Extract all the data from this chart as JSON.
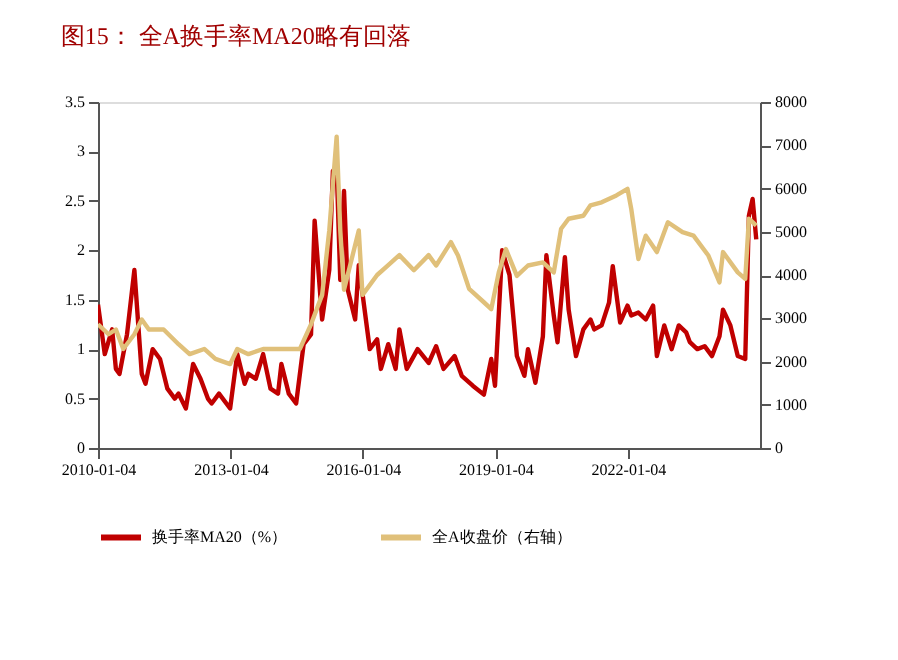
{
  "chart_data": {
    "type": "line",
    "title": "图15： 全A换手率MA20略有回落",
    "xlim": [
      "2010-01-04",
      "2025-01-01"
    ],
    "xticks": [
      "2010-01-04",
      "2013-01-04",
      "2016-01-04",
      "2019-01-04",
      "2022-01-04"
    ],
    "ylim": [
      0,
      3.5
    ],
    "yticks": [
      0,
      0.5,
      1,
      1.5,
      2,
      2.5,
      3,
      3.5
    ],
    "y2lim": [
      0,
      8000
    ],
    "y2ticks": [
      0,
      1000,
      2000,
      3000,
      4000,
      5000,
      6000,
      7000,
      8000
    ],
    "grid": false,
    "legend": "bottom",
    "line_style": "solid",
    "marker": "none",
    "series": [
      {
        "name": "换手率MA20（%）",
        "color": "#c00000",
        "x": [
          "2010-01-04",
          "2010-03",
          "2010-05",
          "2010-06",
          "2010-07",
          "2010-09",
          "2010-11",
          "2011-01",
          "2011-02",
          "2011-04",
          "2011-06",
          "2011-08",
          "2011-10",
          "2011-11",
          "2012-01",
          "2012-03",
          "2012-05",
          "2012-07",
          "2012-08",
          "2012-10",
          "2013-01",
          "2013-03",
          "2013-05",
          "2013-06",
          "2013-08",
          "2013-10",
          "2013-12",
          "2014-02",
          "2014-03",
          "2014-05",
          "2014-07",
          "2014-09",
          "2014-11",
          "2014-12",
          "2015-02",
          "2015-04",
          "2015-05",
          "2015-06",
          "2015-07",
          "2015-08",
          "2015-09",
          "2015-11",
          "2015-12",
          "2016-03",
          "2016-05",
          "2016-06",
          "2016-08",
          "2016-10",
          "2016-11",
          "2017-01",
          "2017-04",
          "2017-07",
          "2017-09",
          "2017-11",
          "2018-02",
          "2018-04",
          "2018-07",
          "2018-10",
          "2018-12",
          "2019-01",
          "2019-03",
          "2019-05",
          "2019-07",
          "2019-09",
          "2019-10",
          "2019-12",
          "2020-02",
          "2020-03",
          "2020-05",
          "2020-06",
          "2020-08",
          "2020-09",
          "2020-11",
          "2021-01",
          "2021-03",
          "2021-04",
          "2021-06",
          "2021-08",
          "2021-09",
          "2021-11",
          "2022-01",
          "2022-02",
          "2022-04",
          "2022-06",
          "2022-08",
          "2022-09",
          "2022-11",
          "2023-01",
          "2023-03",
          "2023-05",
          "2023-06",
          "2023-08",
          "2023-10",
          "2023-12",
          "2024-02",
          "2024-03",
          "2024-05",
          "2024-07",
          "2024-09",
          "2024-10",
          "2024-11",
          "2024-12"
        ],
        "values": [
          1.45,
          0.95,
          1.2,
          0.8,
          0.75,
          1.15,
          1.8,
          0.75,
          0.65,
          1.0,
          0.9,
          0.6,
          0.5,
          0.55,
          0.4,
          0.85,
          0.7,
          0.5,
          0.45,
          0.55,
          0.4,
          0.95,
          0.65,
          0.75,
          0.7,
          0.95,
          0.6,
          0.55,
          0.85,
          0.55,
          0.45,
          1.05,
          1.15,
          2.3,
          1.3,
          1.8,
          2.8,
          2.85,
          1.7,
          2.6,
          1.6,
          1.3,
          1.85,
          1.0,
          1.1,
          0.8,
          1.05,
          0.8,
          1.2,
          0.8,
          1.0,
          0.86,
          1.03,
          0.8,
          0.93,
          0.73,
          0.63,
          0.54,
          0.9,
          0.63,
          2.0,
          1.75,
          0.93,
          0.73,
          1.0,
          0.66,
          1.13,
          1.95,
          1.34,
          1.07,
          1.93,
          1.4,
          0.93,
          1.2,
          1.3,
          1.2,
          1.24,
          1.47,
          1.84,
          1.27,
          1.44,
          1.34,
          1.37,
          1.3,
          1.44,
          0.93,
          1.24,
          1.0,
          1.24,
          1.17,
          1.07,
          1.0,
          1.03,
          0.93,
          1.13,
          1.4,
          1.24,
          0.93,
          0.9,
          2.35,
          2.52,
          2.11
        ]
      },
      {
        "name": "全A收盘价（右轴）",
        "color": "#e0c07a",
        "axis": "y2",
        "x": [
          "2010-01-04",
          "2010-04",
          "2010-06",
          "2010-08",
          "2010-11",
          "2011-01",
          "2011-03",
          "2011-07",
          "2011-11",
          "2012-02",
          "2012-06",
          "2012-09",
          "2013-01",
          "2013-03",
          "2013-06",
          "2013-10",
          "2014-02",
          "2014-05",
          "2014-08",
          "2014-11",
          "2015-02",
          "2015-04",
          "2015-06",
          "2015-07",
          "2015-08",
          "2015-10",
          "2015-12",
          "2016-01",
          "2016-05",
          "2016-08",
          "2016-11",
          "2017-03",
          "2017-07",
          "2017-09",
          "2018-01",
          "2018-03",
          "2018-06",
          "2018-10",
          "2018-12",
          "2019-02",
          "2019-04",
          "2019-07",
          "2019-10",
          "2020-02",
          "2020-05",
          "2020-07",
          "2020-09",
          "2021-01",
          "2021-03",
          "2021-06",
          "2021-10",
          "2022-01",
          "2022-02",
          "2022-04",
          "2022-06",
          "2022-09",
          "2022-12",
          "2023-04",
          "2023-07",
          "2023-11",
          "2024-02",
          "2024-03",
          "2024-07",
          "2024-09",
          "2024-10",
          "2024-11",
          "2024-12"
        ],
        "values": [
          2860,
          2630,
          2740,
          2290,
          2630,
          2970,
          2740,
          2740,
          2400,
          2170,
          2290,
          2060,
          1940,
          2290,
          2170,
          2290,
          2290,
          2290,
          2290,
          2860,
          3540,
          5030,
          7200,
          5030,
          3660,
          4340,
          5030,
          3540,
          4000,
          4230,
          4460,
          4110,
          4460,
          4220,
          4760,
          4450,
          3680,
          3370,
          3210,
          4060,
          4600,
          3980,
          4220,
          4290,
          4060,
          5070,
          5300,
          5370,
          5610,
          5680,
          5840,
          5990,
          5530,
          4370,
          4910,
          4530,
          5220,
          4990,
          4910,
          4450,
          3830,
          4530,
          4060,
          3910,
          5300,
          5220,
          5140
        ]
      }
    ]
  }
}
